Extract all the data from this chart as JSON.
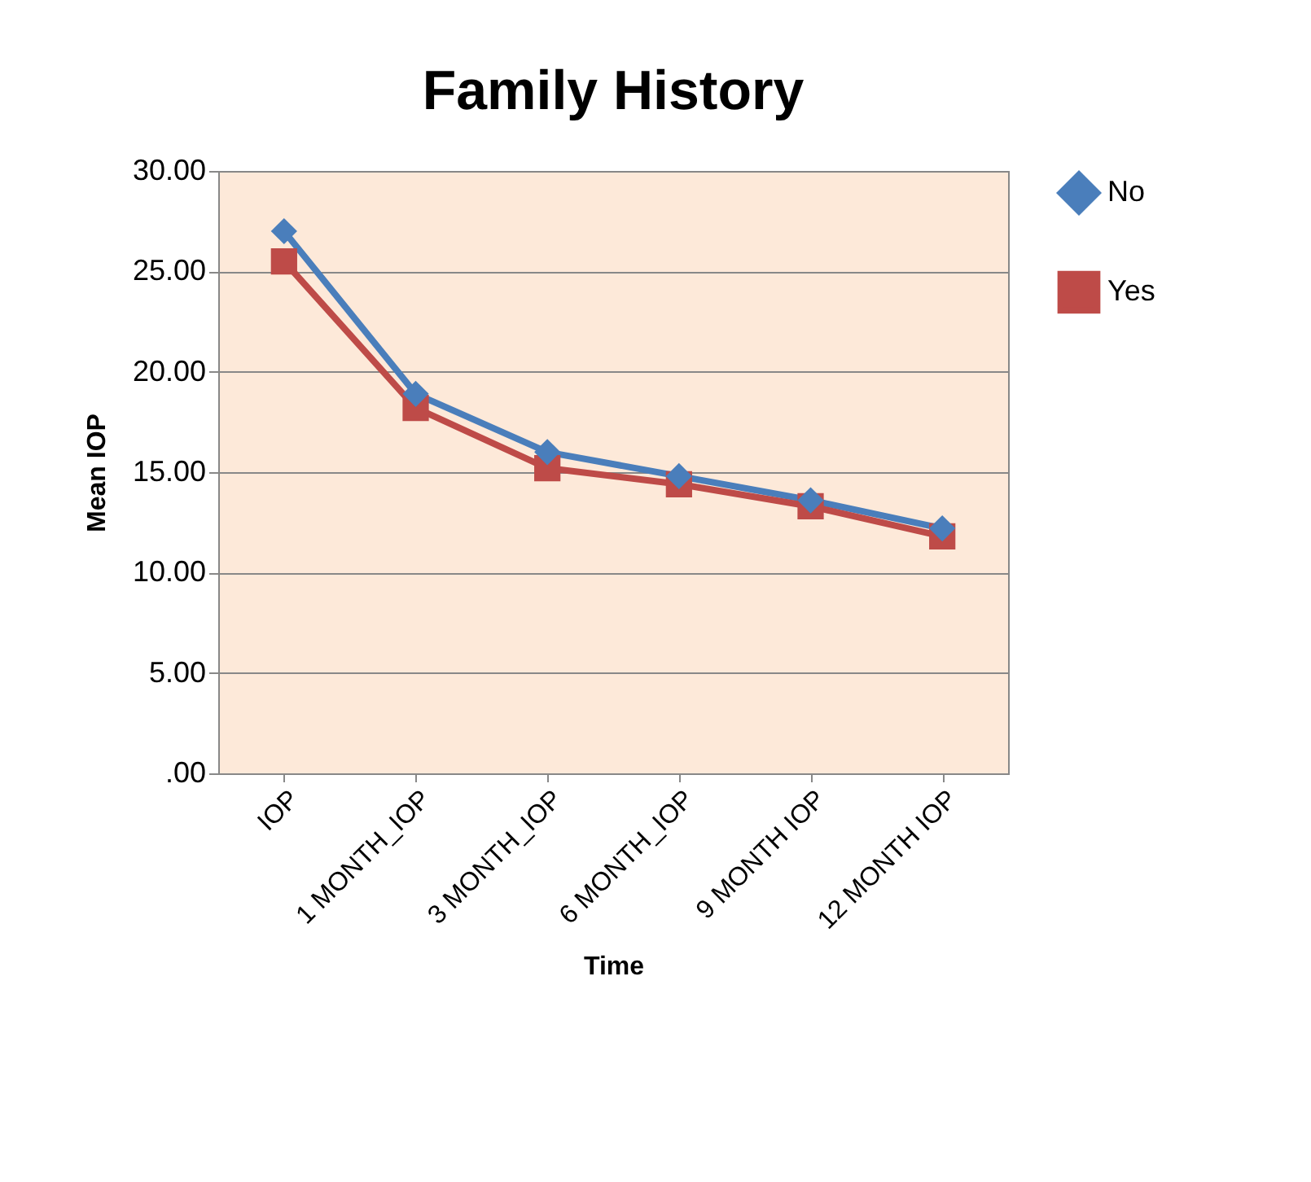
{
  "chart_data": {
    "type": "line",
    "title": "Family History",
    "xlabel": "Time",
    "ylabel": "Mean IOP",
    "categories": [
      "IOP",
      "1 MONTH_IOP",
      "3 MONTH_IOP",
      "6 MONTH_IOP",
      "9 MONTH IOP",
      "12 MONTH IOP"
    ],
    "series": [
      {
        "name": "No",
        "color": "#4a7ebb",
        "marker": "diamond",
        "values": [
          27.0,
          18.9,
          16.0,
          14.8,
          13.6,
          12.2
        ]
      },
      {
        "name": "Yes",
        "color": "#be4b48",
        "marker": "square",
        "values": [
          25.5,
          18.2,
          15.2,
          14.4,
          13.3,
          11.8
        ]
      }
    ],
    "ylim": [
      0,
      30
    ],
    "yticks": [
      {
        "value": 0,
        "label": ".00"
      },
      {
        "value": 5,
        "label": "5.00"
      },
      {
        "value": 10,
        "label": "10.00"
      },
      {
        "value": 15,
        "label": "15.00"
      },
      {
        "value": 20,
        "label": "20.00"
      },
      {
        "value": 25,
        "label": "25.00"
      },
      {
        "value": 30,
        "label": "30.00"
      }
    ],
    "grid": "y",
    "legend": "right"
  }
}
